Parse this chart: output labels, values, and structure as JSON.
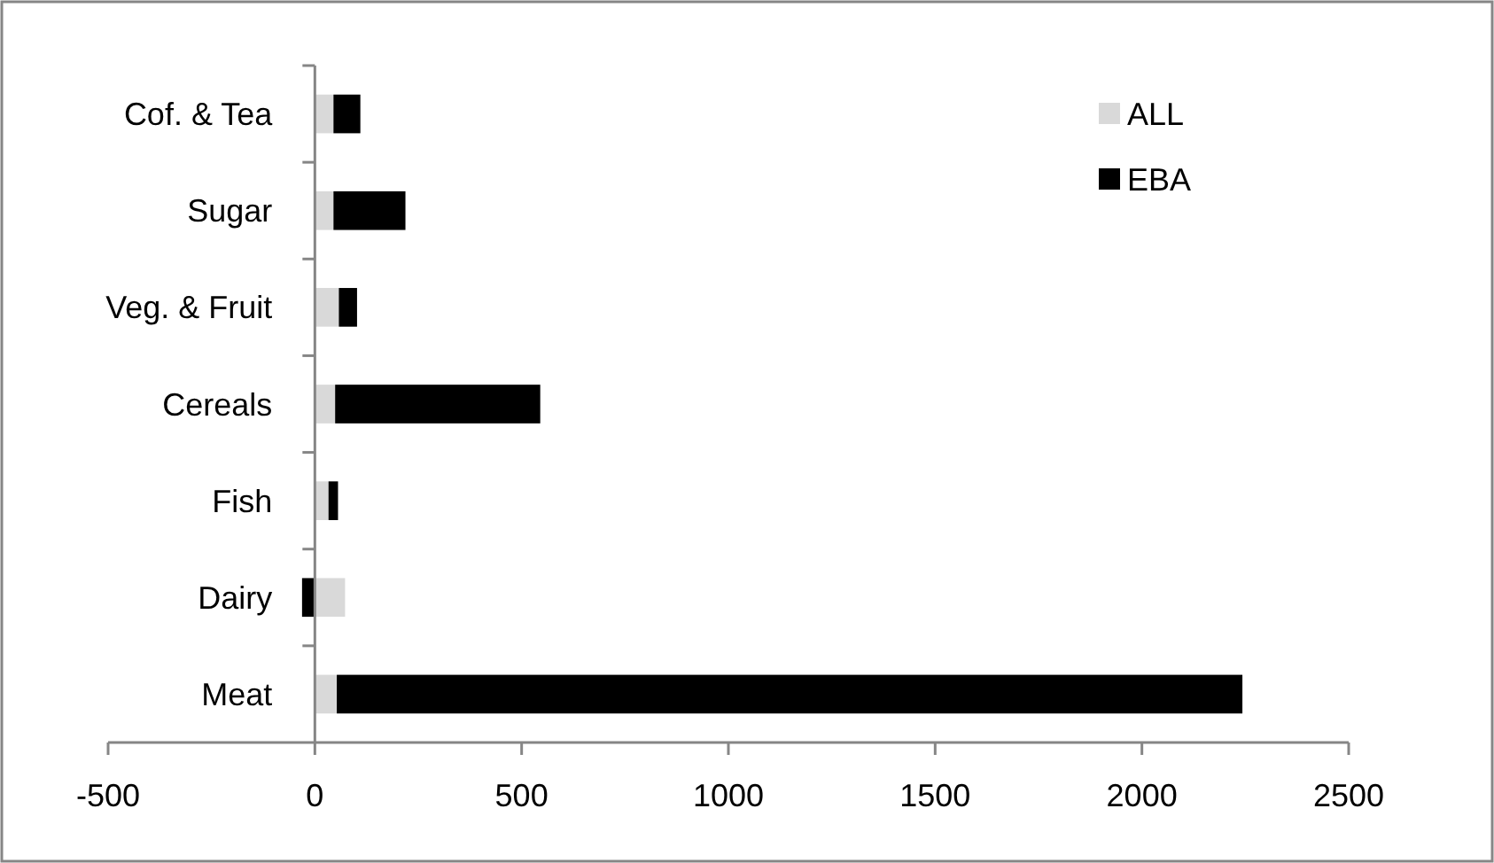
{
  "chart_data": {
    "type": "bar",
    "orientation": "horizontal",
    "stacked": true,
    "categories": [
      "Cof. & Tea",
      "Sugar",
      "Veg. & Fruit",
      "Cereals",
      "Fish",
      "Dairy",
      "Meat"
    ],
    "series": [
      {
        "name": "ALL",
        "color": "#d9d9d9",
        "values": [
          45,
          45,
          58,
          49,
          33,
          73,
          53
        ]
      },
      {
        "name": "EBA",
        "color": "#000000",
        "values": [
          65,
          174,
          44,
          496,
          23,
          -31,
          2190
        ]
      }
    ],
    "xlim": [
      -500,
      2500
    ],
    "xticks": [
      -500,
      0,
      500,
      1000,
      1500,
      2000,
      2500
    ],
    "grid": false,
    "legend": "top right"
  }
}
